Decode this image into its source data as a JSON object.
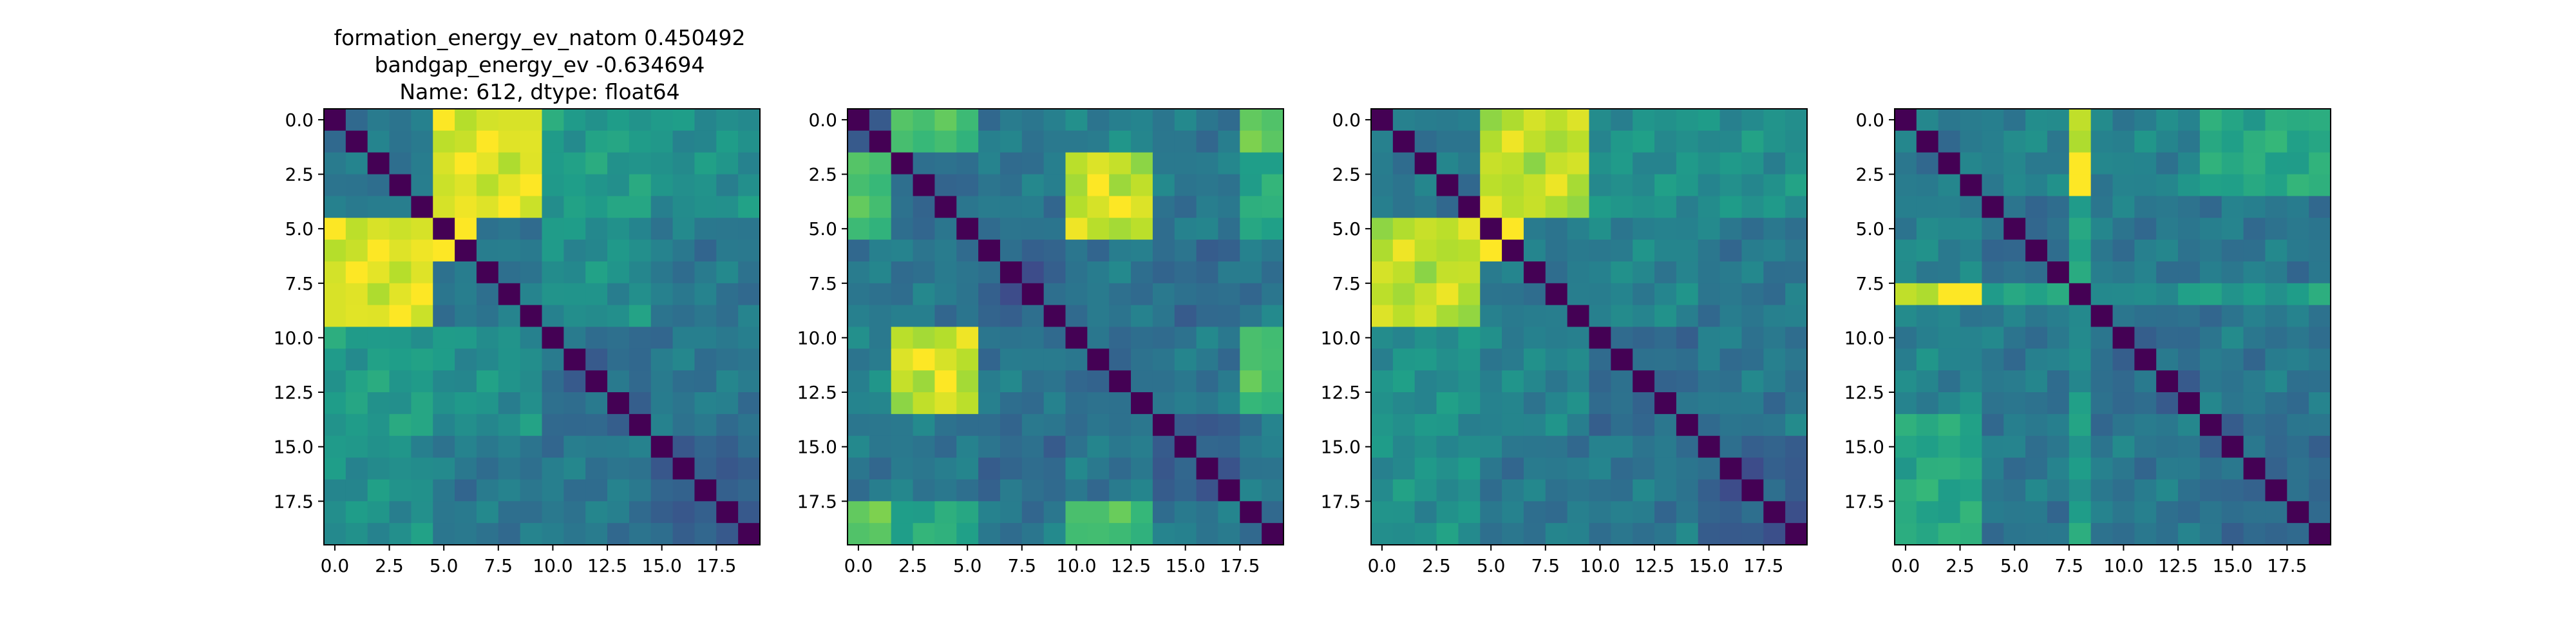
{
  "figure": {
    "title_lines": [
      "formation_energy_ev_natom    0.450492",
      "bandgap_energy_ev           -0.634694",
      "Name: 612, dtype: float64"
    ]
  },
  "colormap": {
    "name": "viridis",
    "stops": [
      "#440154",
      "#482878",
      "#3e4989",
      "#31688e",
      "#26828e",
      "#1f9e89",
      "#35b779",
      "#6ece58",
      "#b5de2b",
      "#fde725"
    ]
  },
  "chart_data": [
    {
      "type": "heatmap",
      "title": "",
      "xlabel": "",
      "ylabel": "",
      "size": 20,
      "xlim": [
        -0.5,
        19.5
      ],
      "ylim": [
        19.5,
        -0.5
      ],
      "xticks": [
        "0.0",
        "2.5",
        "5.0",
        "7.5",
        "10.0",
        "12.5",
        "15.0",
        "17.5"
      ],
      "yticks": [
        "0.0",
        "2.5",
        "5.0",
        "7.5",
        "10.0",
        "12.5",
        "15.0",
        "17.5"
      ],
      "groups": [
        [
          0,
          5
        ],
        [
          5,
          10
        ],
        [
          10,
          15
        ],
        [
          15,
          20
        ]
      ],
      "group_levels": [
        [
          0.4,
          0.95,
          0.55,
          0.5
        ],
        [
          0.95,
          0.4,
          0.5,
          0.4
        ],
        [
          0.55,
          0.5,
          0.35,
          0.4
        ],
        [
          0.5,
          0.4,
          0.4,
          0.3
        ]
      ],
      "hot_cells": [
        [
          5,
          6
        ],
        [
          6,
          5
        ]
      ]
    },
    {
      "type": "heatmap",
      "title": "",
      "xlabel": "",
      "ylabel": "",
      "size": 20,
      "xlim": [
        -0.5,
        19.5
      ],
      "ylim": [
        19.5,
        -0.5
      ],
      "xticks": [
        "0.0",
        "2.5",
        "5.0",
        "7.5",
        "10.0",
        "12.5",
        "15.0",
        "17.5"
      ],
      "yticks": [
        "0.0",
        "2.5",
        "5.0",
        "7.5",
        "10.0",
        "12.5",
        "15.0",
        "17.5"
      ],
      "groups": [
        [
          0,
          2
        ],
        [
          2,
          6
        ],
        [
          6,
          10
        ],
        [
          10,
          14
        ],
        [
          14,
          18
        ],
        [
          18,
          20
        ]
      ],
      "group_levels": [
        [
          0.3,
          0.7,
          0.4,
          0.45,
          0.4,
          0.75
        ],
        [
          0.7,
          0.35,
          0.4,
          0.9,
          0.4,
          0.6
        ],
        [
          0.4,
          0.4,
          0.3,
          0.4,
          0.35,
          0.4
        ],
        [
          0.45,
          0.9,
          0.4,
          0.35,
          0.4,
          0.7
        ],
        [
          0.4,
          0.4,
          0.35,
          0.4,
          0.3,
          0.4
        ],
        [
          0.75,
          0.6,
          0.4,
          0.7,
          0.4,
          0.4
        ]
      ],
      "hot_cells": [
        [
          3,
          11
        ],
        [
          11,
          3
        ],
        [
          4,
          12
        ],
        [
          12,
          4
        ]
      ]
    },
    {
      "type": "heatmap",
      "title": "",
      "xlabel": "",
      "ylabel": "",
      "size": 20,
      "xlim": [
        -0.5,
        19.5
      ],
      "ylim": [
        19.5,
        -0.5
      ],
      "xticks": [
        "0.0",
        "2.5",
        "5.0",
        "7.5",
        "10.0",
        "12.5",
        "15.0",
        "17.5"
      ],
      "yticks": [
        "0.0",
        "2.5",
        "5.0",
        "7.5",
        "10.0",
        "12.5",
        "15.0",
        "17.5"
      ],
      "groups": [
        [
          0,
          5
        ],
        [
          5,
          10
        ],
        [
          10,
          15
        ],
        [
          15,
          20
        ]
      ],
      "group_levels": [
        [
          0.4,
          0.9,
          0.5,
          0.5
        ],
        [
          0.9,
          0.4,
          0.45,
          0.4
        ],
        [
          0.5,
          0.45,
          0.35,
          0.4
        ],
        [
          0.5,
          0.4,
          0.4,
          0.3
        ]
      ],
      "hot_cells": [
        [
          5,
          6
        ],
        [
          6,
          5
        ]
      ]
    },
    {
      "type": "heatmap",
      "title": "",
      "xlabel": "",
      "ylabel": "",
      "size": 20,
      "xlim": [
        -0.5,
        19.5
      ],
      "ylim": [
        19.5,
        -0.5
      ],
      "xticks": [
        "0.0",
        "2.5",
        "5.0",
        "7.5",
        "10.0",
        "12.5",
        "15.0",
        "17.5"
      ],
      "yticks": [
        "0.0",
        "2.5",
        "5.0",
        "7.5",
        "10.0",
        "12.5",
        "15.0",
        "17.5"
      ],
      "groups": [
        [
          0,
          4
        ],
        [
          4,
          8
        ],
        [
          8,
          9
        ],
        [
          9,
          14
        ],
        [
          14,
          20
        ]
      ],
      "group_levels": [
        [
          0.4,
          0.45,
          0.9,
          0.45,
          0.6
        ],
        [
          0.45,
          0.35,
          0.6,
          0.4,
          0.4
        ],
        [
          0.9,
          0.6,
          0.3,
          0.5,
          0.55
        ],
        [
          0.45,
          0.4,
          0.5,
          0.35,
          0.4
        ],
        [
          0.6,
          0.4,
          0.55,
          0.4,
          0.35
        ]
      ],
      "hot_cells": [
        [
          2,
          8
        ],
        [
          8,
          2
        ],
        [
          3,
          8
        ],
        [
          8,
          3
        ]
      ]
    }
  ]
}
